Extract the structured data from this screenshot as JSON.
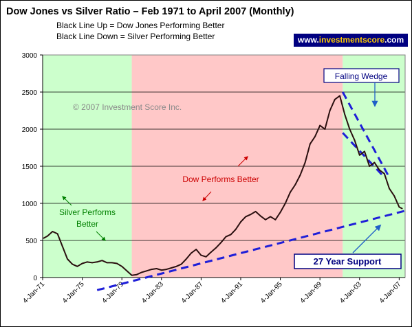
{
  "title": "Dow Jones vs Silver Ratio – Feb 1971 to April 2007 (Monthly)",
  "subtitle_1": "Black Line Up = Dow Jones Performing Better",
  "subtitle_2": "Black Line Down = Silver Performing Better",
  "brand": {
    "prefix": "www.",
    "highlight": "investmentscore",
    "suffix": ".com"
  },
  "colors": {
    "silver_zone": "#ccffcc",
    "dow_zone": "#ffc8c8",
    "ratio_line": "#2a0f0f",
    "trend_lines": "#1f1fd8",
    "annotation_box_border": "#000080",
    "annotation_text": "#000080",
    "zone_label_red": "#cc0000",
    "zone_label_green": "#008000",
    "copyright_text": "#8a8a8a",
    "brand_background": "#000080",
    "brand_highlight": "#ffcc00"
  },
  "chart_data": {
    "type": "line",
    "title": "Dow Jones vs Silver Ratio – Feb 1971 to April 2007 (Monthly)",
    "xlabel": "",
    "ylabel": "",
    "ylim": [
      0,
      3000
    ],
    "yticks": [
      0,
      500,
      1000,
      1500,
      2000,
      2500,
      3000
    ],
    "xlim": [
      1971.0,
      2007.6
    ],
    "x_tick_labels": [
      "4-Jan-71",
      "4-Jan-75",
      "4-Jan-79",
      "4-Jan-83",
      "4-Jan-87",
      "4-Jan-91",
      "4-Jan-95",
      "4-Jan-99",
      "4-Jan-03",
      "4-Jan-07"
    ],
    "x_tick_years": [
      1971,
      1975,
      1979,
      1983,
      1987,
      1991,
      1995,
      1999,
      2003,
      2007
    ],
    "grid": "horizontal",
    "legend": "none",
    "series": [
      {
        "x": [
          1971.1,
          1971.5,
          1972.0,
          1972.5,
          1973.0,
          1973.5,
          1974.0,
          1974.5,
          1975.0,
          1975.5,
          1976.0,
          1976.5,
          1977.0,
          1977.5,
          1978.0,
          1978.5,
          1979.0,
          1979.5,
          1980.0,
          1980.5,
          1981.0,
          1981.5,
          1982.0,
          1982.5,
          1983.0,
          1983.5,
          1984.0,
          1984.5,
          1985.0,
          1985.5,
          1986.0,
          1986.5,
          1987.0,
          1987.5,
          1987.9,
          1988.5,
          1989.0,
          1989.5,
          1990.0,
          1990.5,
          1991.0,
          1991.5,
          1992.0,
          1992.5,
          1993.0,
          1993.5,
          1994.0,
          1994.5,
          1995.0,
          1995.5,
          1996.0,
          1996.5,
          1997.0,
          1997.5,
          1998.0,
          1998.5,
          1999.0,
          1999.5,
          2000.0,
          2000.5,
          2001.0,
          2001.5,
          2002.0,
          2002.5,
          2003.0,
          2003.5,
          2004.0,
          2004.5,
          2005.0,
          2005.5,
          2006.0,
          2006.5,
          2007.0,
          2007.3
        ],
        "y": [
          530,
          560,
          620,
          590,
          420,
          250,
          180,
          150,
          190,
          210,
          200,
          210,
          230,
          200,
          200,
          190,
          150,
          90,
          30,
          40,
          70,
          90,
          110,
          120,
          100,
          110,
          130,
          150,
          180,
          250,
          330,
          380,
          300,
          280,
          330,
          400,
          470,
          550,
          580,
          650,
          750,
          820,
          850,
          890,
          830,
          780,
          820,
          780,
          880,
          1000,
          1150,
          1250,
          1380,
          1550,
          1800,
          1900,
          2050,
          2000,
          2250,
          2400,
          2450,
          2200,
          2000,
          1850,
          1650,
          1700,
          1500,
          1550,
          1450,
          1400,
          1200,
          1100,
          950,
          930
        ]
      }
    ],
    "zones": [
      {
        "label": "Silver Performs Better",
        "x_start": 1971.0,
        "x_end": 1980.0,
        "kind": "silver"
      },
      {
        "label": "Dow Performs Better",
        "x_start": 1980.0,
        "x_end": 2001.3,
        "kind": "dow"
      },
      {
        "label": "",
        "x_start": 2001.3,
        "x_end": 2007.6,
        "kind": "silver"
      }
    ],
    "trend_lines": [
      {
        "label": "27 Year Support",
        "points": [
          [
            1976.5,
            -170
          ],
          [
            2007.6,
            900
          ]
        ]
      },
      {
        "label": "Falling Wedge",
        "points": [
          [
            2001.3,
            2500
          ],
          [
            2006.0,
            1350
          ]
        ]
      },
      {
        "label": "Falling Wedge",
        "points": [
          [
            2001.3,
            1950
          ],
          [
            2005.3,
            1380
          ]
        ]
      }
    ],
    "annotations": [
      {
        "text": "© 2007 Investment Score Inc.",
        "kind": "watermark"
      },
      {
        "text": "Falling Wedge",
        "kind": "boxed"
      },
      {
        "text": "27 Year Support",
        "kind": "boxed"
      },
      {
        "text": "Dow Performs Better",
        "kind": "zone"
      },
      {
        "text": "Silver Performs",
        "kind": "zone"
      },
      {
        "text": "Better",
        "kind": "zone"
      }
    ]
  }
}
